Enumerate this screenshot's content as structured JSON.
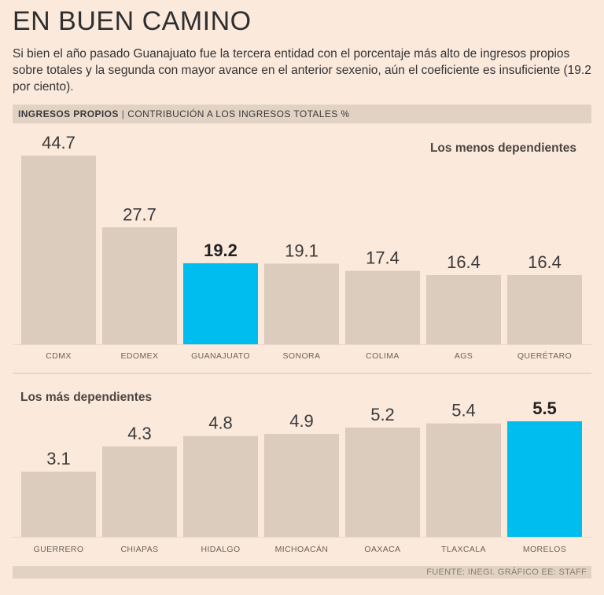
{
  "title": "EN BUEN CAMINO",
  "subtitle": "Si bien el año pasado Guanajuato fue la tercera entidad con el porcentaje más alto de ingresos propios sobre totales y la segunda con mayor avance en el anterior sexenio, aún el coeficiente es insuficiente (19.2 por ciento).",
  "header": {
    "strong": "INGRESOS PROPIOS",
    "rest": "CONTRIBUCIÓN A LOS INGRESOS TOTALES %"
  },
  "footer": "FUENTE: INEGI. GRÁFICO EE: STAFF",
  "colors": {
    "bar": "#dcccbd",
    "highlight": "#00bdf0",
    "background": "#fbe9dc"
  },
  "chart_data": [
    {
      "type": "bar",
      "title": "Los menos dependientes",
      "ylabel": "Contribución a los ingresos totales %",
      "categories": [
        "CDMX",
        "EDOMEX",
        "GUANAJUATO",
        "SONORA",
        "COLIMA",
        "AGS",
        "QUERÉTARO"
      ],
      "values": [
        44.7,
        27.7,
        19.2,
        19.1,
        17.4,
        16.4,
        16.4
      ],
      "value_labels": [
        "44.7",
        "27.7",
        "19.2",
        "19.1",
        "17.4",
        "16.4",
        "16.4"
      ],
      "highlight": "GUANAJUATO",
      "ylim": [
        0,
        44.7
      ]
    },
    {
      "type": "bar",
      "title": "Los más dependientes",
      "ylabel": "Contribución a los ingresos totales %",
      "categories": [
        "GUERRERO",
        "CHIAPAS",
        "HIDALGO",
        "MICHOACÁN",
        "OAXACA",
        "TLAXCALA",
        "MORELOS"
      ],
      "values": [
        3.1,
        4.3,
        4.8,
        4.9,
        5.2,
        5.4,
        5.5
      ],
      "value_labels": [
        "3.1",
        "4.3",
        "4.8",
        "4.9",
        "5.2",
        "5.4",
        "5.5"
      ],
      "highlight": "MORELOS",
      "ylim": [
        0,
        5.5
      ]
    }
  ]
}
